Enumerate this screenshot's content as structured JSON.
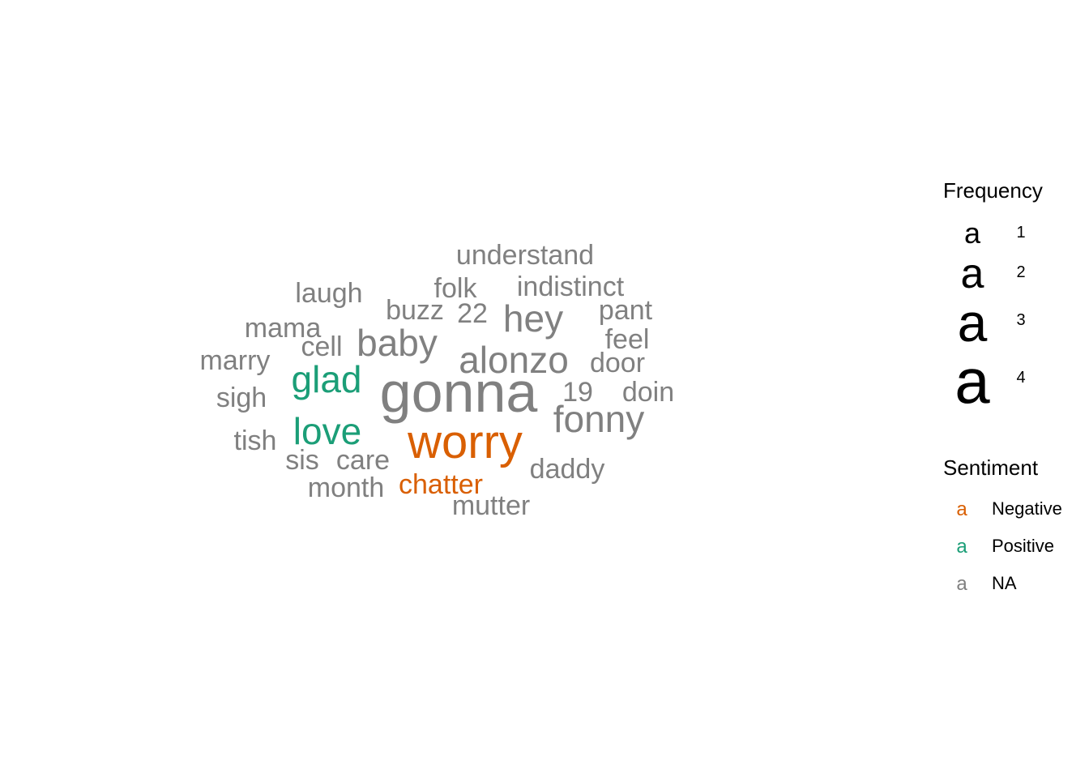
{
  "chart_data": {
    "type": "wordcloud",
    "title": "",
    "colors": {
      "Negative": "#d95f02",
      "Positive": "#1b9e77",
      "NA": "#808080"
    },
    "words": [
      {
        "word": "gonna",
        "frequency": 4,
        "sentiment": "NA"
      },
      {
        "word": "worry",
        "frequency": 4,
        "sentiment": "Negative"
      },
      {
        "word": "alonzo",
        "frequency": 3,
        "sentiment": "NA"
      },
      {
        "word": "fonny",
        "frequency": 3,
        "sentiment": "NA"
      },
      {
        "word": "baby",
        "frequency": 3,
        "sentiment": "NA"
      },
      {
        "word": "hey",
        "frequency": 3,
        "sentiment": "NA"
      },
      {
        "word": "glad",
        "frequency": 3,
        "sentiment": "Positive"
      },
      {
        "word": "love",
        "frequency": 3,
        "sentiment": "Positive"
      },
      {
        "word": "understand",
        "frequency": 2,
        "sentiment": "NA"
      },
      {
        "word": "indistinct",
        "frequency": 2,
        "sentiment": "NA"
      },
      {
        "word": "folk",
        "frequency": 2,
        "sentiment": "NA"
      },
      {
        "word": "laugh",
        "frequency": 2,
        "sentiment": "NA"
      },
      {
        "word": "buzz",
        "frequency": 2,
        "sentiment": "NA"
      },
      {
        "word": "22",
        "frequency": 2,
        "sentiment": "NA"
      },
      {
        "word": "pant",
        "frequency": 2,
        "sentiment": "NA"
      },
      {
        "word": "mama",
        "frequency": 2,
        "sentiment": "NA"
      },
      {
        "word": "feel",
        "frequency": 2,
        "sentiment": "NA"
      },
      {
        "word": "cell",
        "frequency": 2,
        "sentiment": "NA"
      },
      {
        "word": "marry",
        "frequency": 2,
        "sentiment": "NA"
      },
      {
        "word": "door",
        "frequency": 2,
        "sentiment": "NA"
      },
      {
        "word": "sigh",
        "frequency": 2,
        "sentiment": "NA"
      },
      {
        "word": "19",
        "frequency": 2,
        "sentiment": "NA"
      },
      {
        "word": "doin",
        "frequency": 2,
        "sentiment": "NA"
      },
      {
        "word": "tish",
        "frequency": 2,
        "sentiment": "NA"
      },
      {
        "word": "sis",
        "frequency": 2,
        "sentiment": "NA"
      },
      {
        "word": "care",
        "frequency": 2,
        "sentiment": "NA"
      },
      {
        "word": "daddy",
        "frequency": 2,
        "sentiment": "NA"
      },
      {
        "word": "month",
        "frequency": 2,
        "sentiment": "NA"
      },
      {
        "word": "chatter",
        "frequency": 2,
        "sentiment": "Negative"
      },
      {
        "word": "mutter",
        "frequency": 2,
        "sentiment": "NA"
      }
    ],
    "legend": {
      "frequency_title": "Frequency",
      "frequency_key_glyph": "a",
      "frequency_levels": [
        "1",
        "2",
        "3",
        "4"
      ],
      "sentiment_title": "Sentiment",
      "sentiment_key_glyph": "a",
      "sentiment_levels": [
        "Negative",
        "Positive",
        "NA"
      ],
      "placement": "right"
    }
  }
}
